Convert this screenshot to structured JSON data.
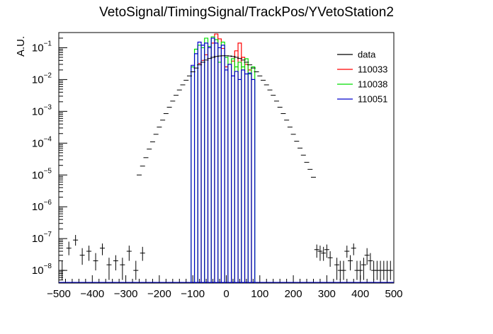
{
  "chart_data": {
    "type": "histogram",
    "title": "VetoSignal/TimingSignal/TrackPos/YVetoStation2",
    "xlabel": "",
    "ylabel": "A.U.",
    "xlim": [
      -500,
      500
    ],
    "ylim": [
      4e-09,
      0.3
    ],
    "yscale": "log",
    "grid": false,
    "legend_position": "top-right",
    "x_ticks": [
      "−500",
      "−400",
      "−300",
      "−200",
      "−100",
      "0",
      "100",
      "200",
      "300",
      "400",
      "500"
    ],
    "y_ticks": [
      {
        "base": "10",
        "exp": "−1",
        "value": 0.1
      },
      {
        "base": "10",
        "exp": "−2",
        "value": 0.01
      },
      {
        "base": "10",
        "exp": "−3",
        "value": 0.001
      },
      {
        "base": "10",
        "exp": "−4",
        "value": 0.0001
      },
      {
        "base": "10",
        "exp": "−5",
        "value": 1e-05
      },
      {
        "base": "10",
        "exp": "−6",
        "value": 1e-06
      },
      {
        "base": "10",
        "exp": "−7",
        "value": 1e-07
      },
      {
        "base": "10",
        "exp": "−8",
        "value": 1e-08
      }
    ],
    "data_points": [
      {
        "x": -490,
        "y": 1e-08,
        "err": [
          5e-09,
          1e-08
        ]
      },
      {
        "x": -470,
        "y": 5e-08,
        "err": [
          2e-08,
          3e-08
        ]
      },
      {
        "x": -450,
        "y": 9e-08,
        "err": [
          3e-08,
          4e-08
        ]
      },
      {
        "x": -430,
        "y": 3e-08,
        "err": [
          1.5e-08,
          2e-08
        ]
      },
      {
        "x": -410,
        "y": 4e-08,
        "err": [
          2e-08,
          2e-08
        ]
      },
      {
        "x": -390,
        "y": 2e-08,
        "err": [
          1e-08,
          1.5e-08
        ]
      },
      {
        "x": -370,
        "y": 5e-08,
        "err": [
          2e-08,
          2e-08
        ]
      },
      {
        "x": -350,
        "y": 1.5e-08,
        "err": [
          1e-08,
          1e-08
        ]
      },
      {
        "x": -330,
        "y": 2e-08,
        "err": [
          1e-08,
          1e-08
        ]
      },
      {
        "x": -310,
        "y": 1.5e-08,
        "err": [
          1e-08,
          1e-08
        ]
      },
      {
        "x": -290,
        "y": 4e-08,
        "err": [
          2e-08,
          2e-08
        ]
      },
      {
        "x": -270,
        "y": 1e-08,
        "err": [
          5e-09,
          1e-08
        ]
      },
      {
        "x": -250,
        "y": 3.5e-08,
        "err": [
          1.5e-08,
          2e-08
        ]
      },
      {
        "x": -260,
        "y": 1e-05
      },
      {
        "x": -250,
        "y": 1.9e-05
      },
      {
        "x": -240,
        "y": 3.5e-05
      },
      {
        "x": -230,
        "y": 6.5e-05
      },
      {
        "x": -220,
        "y": 0.00011
      },
      {
        "x": -210,
        "y": 0.00019
      },
      {
        "x": -200,
        "y": 0.00032
      },
      {
        "x": -190,
        "y": 0.00053
      },
      {
        "x": -180,
        "y": 0.00085
      },
      {
        "x": -170,
        "y": 0.00135
      },
      {
        "x": -160,
        "y": 0.0021
      },
      {
        "x": -150,
        "y": 0.0032
      },
      {
        "x": -140,
        "y": 0.0047
      },
      {
        "x": -130,
        "y": 0.0068
      },
      {
        "x": -120,
        "y": 0.0095
      },
      {
        "x": -110,
        "y": 0.013
      },
      {
        "x": -100,
        "y": 0.0175
      },
      {
        "x": -90,
        "y": 0.023
      },
      {
        "x": -80,
        "y": 0.029
      },
      {
        "x": -70,
        "y": 0.035
      },
      {
        "x": -60,
        "y": 0.041
      },
      {
        "x": -50,
        "y": 0.046
      },
      {
        "x": -40,
        "y": 0.05
      },
      {
        "x": -30,
        "y": 0.053
      },
      {
        "x": -20,
        "y": 0.055
      },
      {
        "x": -10,
        "y": 0.056
      },
      {
        "x": 0,
        "y": 0.056
      },
      {
        "x": 10,
        "y": 0.055
      },
      {
        "x": 20,
        "y": 0.053
      },
      {
        "x": 30,
        "y": 0.05
      },
      {
        "x": 40,
        "y": 0.046
      },
      {
        "x": 50,
        "y": 0.041
      },
      {
        "x": 60,
        "y": 0.035
      },
      {
        "x": 70,
        "y": 0.029
      },
      {
        "x": 80,
        "y": 0.023
      },
      {
        "x": 90,
        "y": 0.0175
      },
      {
        "x": 100,
        "y": 0.013
      },
      {
        "x": 110,
        "y": 0.0095
      },
      {
        "x": 120,
        "y": 0.0068
      },
      {
        "x": 130,
        "y": 0.0047
      },
      {
        "x": 140,
        "y": 0.0032
      },
      {
        "x": 150,
        "y": 0.0021
      },
      {
        "x": 160,
        "y": 0.00135
      },
      {
        "x": 170,
        "y": 0.00085
      },
      {
        "x": 180,
        "y": 0.00053
      },
      {
        "x": 190,
        "y": 0.00032
      },
      {
        "x": 200,
        "y": 0.00019
      },
      {
        "x": 210,
        "y": 0.000115
      },
      {
        "x": 220,
        "y": 7e-05
      },
      {
        "x": 230,
        "y": 4.2e-05
      },
      {
        "x": 240,
        "y": 2.5e-05
      },
      {
        "x": 250,
        "y": 1.5e-05
      },
      {
        "x": 260,
        "y": 8.5e-06
      },
      {
        "x": 270,
        "y": 4.5e-08,
        "err": [
          2e-08,
          2e-08
        ]
      },
      {
        "x": 280,
        "y": 4e-08,
        "err": [
          2e-08,
          2e-08
        ]
      },
      {
        "x": 290,
        "y": 3.5e-08,
        "err": [
          1.5e-08,
          2e-08
        ]
      },
      {
        "x": 300,
        "y": 4.5e-08,
        "err": [
          2e-08,
          2e-08
        ]
      },
      {
        "x": 310,
        "y": 2.5e-08,
        "err": [
          1.2e-08,
          1.5e-08
        ]
      },
      {
        "x": 330,
        "y": 1.5e-08,
        "err": [
          1e-08,
          1e-08
        ]
      },
      {
        "x": 340,
        "y": 1e-08,
        "err": [
          5e-09,
          1e-08
        ]
      },
      {
        "x": 350,
        "y": 1e-08,
        "err": [
          5e-09,
          1e-08
        ]
      },
      {
        "x": 360,
        "y": 4e-08,
        "err": [
          1.5e-08,
          2e-08
        ]
      },
      {
        "x": 370,
        "y": 2e-08,
        "err": [
          1e-08,
          1e-08
        ]
      },
      {
        "x": 380,
        "y": 5e-08,
        "err": [
          2e-08,
          2e-08
        ]
      },
      {
        "x": 390,
        "y": 1e-08,
        "err": [
          5e-09,
          1e-08
        ]
      },
      {
        "x": 400,
        "y": 1e-08,
        "err": [
          5e-09,
          1e-08
        ]
      },
      {
        "x": 410,
        "y": 1.5e-08,
        "err": [
          1e-08,
          1e-08
        ]
      },
      {
        "x": 420,
        "y": 3e-08,
        "err": [
          1.5e-08,
          2e-08
        ]
      },
      {
        "x": 430,
        "y": 2e-08,
        "err": [
          1e-08,
          1.5e-08
        ]
      },
      {
        "x": 440,
        "y": 1e-08,
        "err": [
          5e-09,
          1e-08
        ]
      },
      {
        "x": 450,
        "y": 1e-08,
        "err": [
          5e-09,
          1e-08
        ]
      },
      {
        "x": 460,
        "y": 1e-08,
        "err": [
          5e-09,
          1e-08
        ]
      },
      {
        "x": 470,
        "y": 1e-08,
        "err": [
          5e-09,
          1e-08
        ]
      },
      {
        "x": 480,
        "y": 1e-08,
        "err": [
          5e-09,
          1e-08
        ]
      },
      {
        "x": 490,
        "y": 1e-08,
        "err": [
          5e-09,
          1e-08
        ]
      }
    ],
    "series": [
      {
        "name": "data",
        "color": "#000000",
        "style": "points-with-errors"
      },
      {
        "name": "110033",
        "color": "#ff0000",
        "style": "step",
        "bin_width": 10,
        "bins": [
          {
            "x": -80,
            "y": 0.032
          },
          {
            "x": -70,
            "y": 0.04
          },
          {
            "x": -60,
            "y": 0.06
          },
          {
            "x": -50,
            "y": 0.11
          },
          {
            "x": -40,
            "y": 0.14
          },
          {
            "x": -30,
            "y": 0.27
          },
          {
            "x": -20,
            "y": 0.19
          },
          {
            "x": -10,
            "y": 0.095
          },
          {
            "x": 0,
            "y": 0.025
          },
          {
            "x": 10,
            "y": 0.03
          },
          {
            "x": 20,
            "y": 0.038
          },
          {
            "x": 30,
            "y": 0.08
          },
          {
            "x": 40,
            "y": 0.14
          },
          {
            "x": 50,
            "y": 0.05
          },
          {
            "x": 60,
            "y": 0.03
          },
          {
            "x": 70,
            "y": 0.02
          }
        ]
      },
      {
        "name": "110038",
        "color": "#00dd00",
        "style": "step",
        "bin_width": 10,
        "bins": [
          {
            "x": -100,
            "y": 0.025
          },
          {
            "x": -90,
            "y": 0.09
          },
          {
            "x": -80,
            "y": 0.12
          },
          {
            "x": -70,
            "y": 0.1
          },
          {
            "x": -60,
            "y": 0.2
          },
          {
            "x": -50,
            "y": 0.11
          },
          {
            "x": -40,
            "y": 0.22
          },
          {
            "x": -30,
            "y": 0.18
          },
          {
            "x": -20,
            "y": 0.035
          },
          {
            "x": -10,
            "y": 0.15
          },
          {
            "x": 0,
            "y": 0.05
          },
          {
            "x": 10,
            "y": 0.03
          },
          {
            "x": 20,
            "y": 0.045
          },
          {
            "x": 30,
            "y": 0.025
          },
          {
            "x": 40,
            "y": 0.035
          },
          {
            "x": 50,
            "y": 0.025
          },
          {
            "x": 60,
            "y": 0.045
          },
          {
            "x": 70,
            "y": 0.015
          },
          {
            "x": 80,
            "y": 0.025
          }
        ]
      },
      {
        "name": "110051",
        "color": "#0000cc",
        "style": "step",
        "bin_width": 10,
        "bins": [
          {
            "x": -100,
            "y": 0.028
          },
          {
            "x": -90,
            "y": 0.065
          },
          {
            "x": -80,
            "y": 0.15
          },
          {
            "x": -70,
            "y": 0.12
          },
          {
            "x": -60,
            "y": 0.14
          },
          {
            "x": -50,
            "y": 0.1
          },
          {
            "x": -40,
            "y": 0.2
          },
          {
            "x": -30,
            "y": 0.14
          },
          {
            "x": -20,
            "y": 0.1
          },
          {
            "x": -10,
            "y": 0.12
          },
          {
            "x": 0,
            "y": 0.02
          },
          {
            "x": 10,
            "y": 0.03
          },
          {
            "x": 20,
            "y": 0.013
          },
          {
            "x": 30,
            "y": 0.018
          },
          {
            "x": 40,
            "y": 0.01
          },
          {
            "x": 50,
            "y": 0.02
          },
          {
            "x": 60,
            "y": 0.015
          },
          {
            "x": 70,
            "y": 0.016
          },
          {
            "x": 80,
            "y": 0.01
          }
        ]
      }
    ]
  }
}
